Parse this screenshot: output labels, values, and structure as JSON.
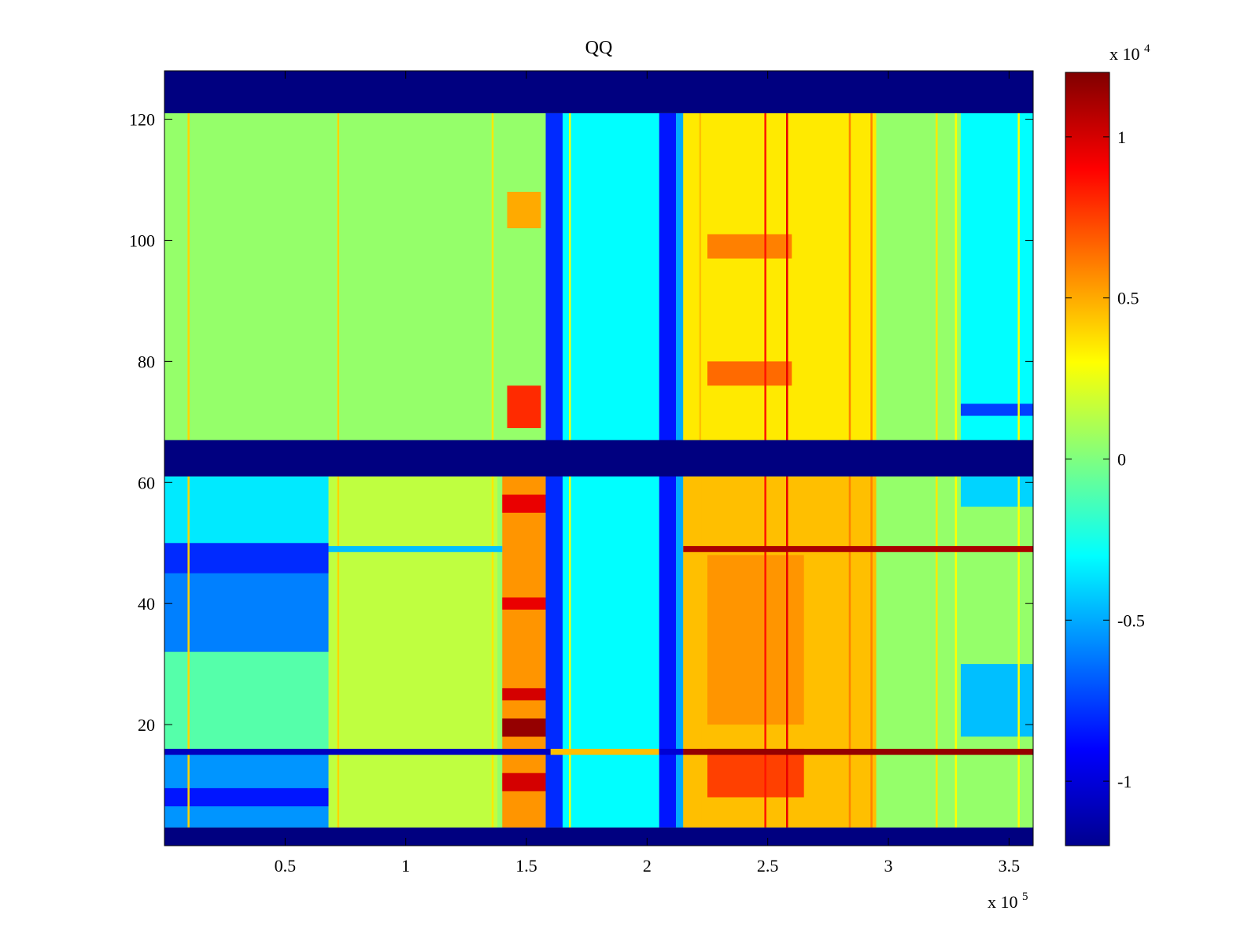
{
  "chart_data": {
    "type": "heatmap",
    "title": "QQ",
    "xlabel": "",
    "ylabel": "",
    "colormap": "jet",
    "x_range": [
      0,
      3.6
    ],
    "y_range": [
      0,
      128
    ],
    "x_multiplier": "x 10",
    "x_multiplier_exp": "5",
    "x_ticks": [
      0.5,
      1,
      1.5,
      2,
      2.5,
      3,
      3.5
    ],
    "x_tick_labels": [
      "0.5",
      "1",
      "1.5",
      "2",
      "2.5",
      "3",
      "3.5"
    ],
    "y_ticks": [
      20,
      40,
      60,
      80,
      100,
      120
    ],
    "y_tick_labels": [
      "20",
      "40",
      "60",
      "80",
      "100",
      "120"
    ],
    "colorbar": {
      "range": [
        -1.2,
        1.2
      ],
      "multiplier": "x 10",
      "multiplier_exp": "4",
      "ticks": [
        1,
        0.5,
        0,
        -0.5,
        -1
      ],
      "tick_labels": [
        "1",
        "0.5",
        "0",
        "-0.5",
        "-1"
      ]
    },
    "masked_rows": [
      [
        0,
        3
      ],
      [
        61,
        67
      ],
      [
        121,
        128
      ]
    ],
    "base_value": 0.05,
    "region_values": [
      {
        "x": [
          0,
          0.68
        ],
        "y": [
          3,
          16
        ],
        "v": -0.55
      },
      {
        "x": [
          0,
          0.68
        ],
        "y": [
          6.5,
          9.5
        ],
        "v": -0.85
      },
      {
        "x": [
          0,
          0.68
        ],
        "y": [
          16,
          32
        ],
        "v": -0.1
      },
      {
        "x": [
          0,
          0.68
        ],
        "y": [
          32,
          50
        ],
        "v": -0.6
      },
      {
        "x": [
          0,
          0.68
        ],
        "y": [
          45,
          50
        ],
        "v": -0.8
      },
      {
        "x": [
          0,
          0.68
        ],
        "y": [
          50,
          61
        ],
        "v": -0.35
      },
      {
        "x": [
          0.68,
          1.38
        ],
        "y": [
          3,
          61
        ],
        "v": 0.15
      },
      {
        "x": [
          1.4,
          1.58
        ],
        "y": [
          3,
          61
        ],
        "v": 0.55
      },
      {
        "x": [
          1.4,
          1.58
        ],
        "y": [
          9,
          12
        ],
        "v": 1.0
      },
      {
        "x": [
          1.4,
          1.58
        ],
        "y": [
          18,
          21
        ],
        "v": 1.15
      },
      {
        "x": [
          1.4,
          1.58
        ],
        "y": [
          24,
          26
        ],
        "v": 1.0
      },
      {
        "x": [
          1.4,
          1.58
        ],
        "y": [
          39,
          41
        ],
        "v": 0.95
      },
      {
        "x": [
          1.4,
          1.58
        ],
        "y": [
          55,
          58
        ],
        "v": 0.95
      },
      {
        "x": [
          1.42,
          1.56
        ],
        "y": [
          69,
          76
        ],
        "v": 0.8
      },
      {
        "x": [
          1.42,
          1.56
        ],
        "y": [
          102,
          108
        ],
        "v": 0.5
      },
      {
        "x": [
          1.58,
          1.65
        ],
        "y": [
          3,
          121
        ],
        "v": -0.8
      },
      {
        "x": [
          1.65,
          2.05
        ],
        "y": [
          3,
          121
        ],
        "v": -0.3
      },
      {
        "x": [
          2.05,
          2.12
        ],
        "y": [
          3,
          121
        ],
        "v": -0.85
      },
      {
        "x": [
          2.12,
          2.15
        ],
        "y": [
          3,
          121
        ],
        "v": -0.5
      },
      {
        "x": [
          2.15,
          2.95
        ],
        "y": [
          3,
          61
        ],
        "v": 0.45
      },
      {
        "x": [
          2.25,
          2.65
        ],
        "y": [
          8,
          16
        ],
        "v": 0.75
      },
      {
        "x": [
          2.25,
          2.65
        ],
        "y": [
          20,
          48
        ],
        "v": 0.55
      },
      {
        "x": [
          2.15,
          2.95
        ],
        "y": [
          67,
          121
        ],
        "v": 0.35
      },
      {
        "x": [
          2.25,
          2.6
        ],
        "y": [
          76,
          80
        ],
        "v": 0.65
      },
      {
        "x": [
          2.25,
          2.6
        ],
        "y": [
          97,
          101
        ],
        "v": 0.6
      },
      {
        "x": [
          2.95,
          3.3
        ],
        "y": [
          3,
          121
        ],
        "v": 0.05
      },
      {
        "x": [
          3.3,
          3.6
        ],
        "y": [
          18,
          30
        ],
        "v": -0.45
      },
      {
        "x": [
          3.3,
          3.6
        ],
        "y": [
          56,
          61
        ],
        "v": -0.4
      },
      {
        "x": [
          3.3,
          3.6
        ],
        "y": [
          67,
          121
        ],
        "v": -0.3
      },
      {
        "x": [
          3.3,
          3.6
        ],
        "y": [
          71,
          73
        ],
        "v": -0.75
      }
    ],
    "row_lines": [
      {
        "x": [
          0,
          1.6
        ],
        "y": [
          15,
          16
        ],
        "v": -1.05
      },
      {
        "x": [
          1.6,
          2.05
        ],
        "y": [
          15,
          16
        ],
        "v": 0.45
      },
      {
        "x": [
          2.05,
          2.15
        ],
        "y": [
          15,
          16
        ],
        "v": -1.0
      },
      {
        "x": [
          2.15,
          3.6
        ],
        "y": [
          15,
          16
        ],
        "v": 1.15
      },
      {
        "x": [
          2.15,
          3.6
        ],
        "y": [
          48.5,
          49.5
        ],
        "v": 1.1
      },
      {
        "x": [
          0.68,
          1.4
        ],
        "y": [
          48.5,
          49.5
        ],
        "v": -0.45
      }
    ],
    "column_lines": [
      {
        "x": 0.1,
        "v": 0.4
      },
      {
        "x": 0.72,
        "v": 0.4
      },
      {
        "x": 1.36,
        "v": 0.35
      },
      {
        "x": 1.68,
        "v": 0.3
      },
      {
        "x": 2.22,
        "v": 0.45
      },
      {
        "x": 2.49,
        "v": 0.85
      },
      {
        "x": 2.58,
        "v": 0.95
      },
      {
        "x": 2.84,
        "v": 0.6
      },
      {
        "x": 2.93,
        "v": 0.6
      },
      {
        "x": 3.2,
        "v": 0.35
      },
      {
        "x": 3.28,
        "v": 0.3
      },
      {
        "x": 3.54,
        "v": 0.3
      }
    ]
  }
}
